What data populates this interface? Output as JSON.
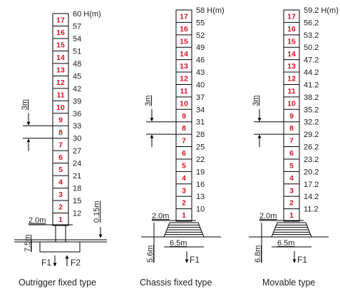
{
  "diagrams": [
    {
      "caption": "Outrigger fixed type",
      "top_height": "60",
      "height_unit": "H(m)",
      "heights": [
        "57",
        "54",
        "51",
        "48",
        "45",
        "42",
        "39",
        "36",
        "33",
        "30",
        "27",
        "24",
        "21",
        "18",
        "15",
        "12"
      ],
      "sections": [
        "17",
        "16",
        "15",
        "14",
        "13",
        "12",
        "11",
        "10",
        "9",
        "8",
        "7",
        "6",
        "5",
        "4",
        "3",
        "2",
        "1"
      ],
      "section_height_label": "3m",
      "base_width_label": "2.0m",
      "foundation_depth_label": "7.5m",
      "offset_label": "0.15m",
      "force_labels": [
        "F1",
        "F2"
      ]
    },
    {
      "caption": "Chassis fixed type",
      "top_height": "58",
      "height_unit": "H(m)",
      "heights": [
        "55",
        "52",
        "49",
        "46",
        "43",
        "40",
        "37",
        "34",
        "31",
        "28",
        "25",
        "22",
        "19",
        "16",
        "13",
        "10"
      ],
      "sections": [
        "17",
        "16",
        "15",
        "14",
        "13",
        "12",
        "11",
        "10",
        "9",
        "8",
        "7",
        "6",
        "5",
        "4",
        "3",
        "2",
        "1"
      ],
      "section_height_label": "3m",
      "base_width_label": "2.0m",
      "chassis_width_label": "6.5m",
      "chassis_height_label": "5.6m",
      "force_labels": [
        "F1"
      ]
    },
    {
      "caption": "Movable type",
      "top_height": "59.2",
      "height_unit": "H(m)",
      "heights": [
        "56.2",
        "53.2",
        "50.2",
        "47.2",
        "44.2",
        "41.2",
        "38.2",
        "35.2",
        "32.2",
        "29.2",
        "26.2",
        "23.2",
        "20.2",
        "17.2",
        "14.2",
        "11.2"
      ],
      "sections": [
        "17",
        "16",
        "15",
        "14",
        "13",
        "12",
        "11",
        "10",
        "9",
        "8",
        "7",
        "6",
        "5",
        "4",
        "3",
        "2",
        "1"
      ],
      "section_height_label": "3m",
      "base_width_label": "2.0m",
      "chassis_width_label": "6.5m",
      "chassis_height_label": "6.8m",
      "force_labels": [
        "F1"
      ]
    }
  ],
  "colors": {
    "section_number": "#d4142a",
    "line": "#000000",
    "text": "#222222"
  }
}
